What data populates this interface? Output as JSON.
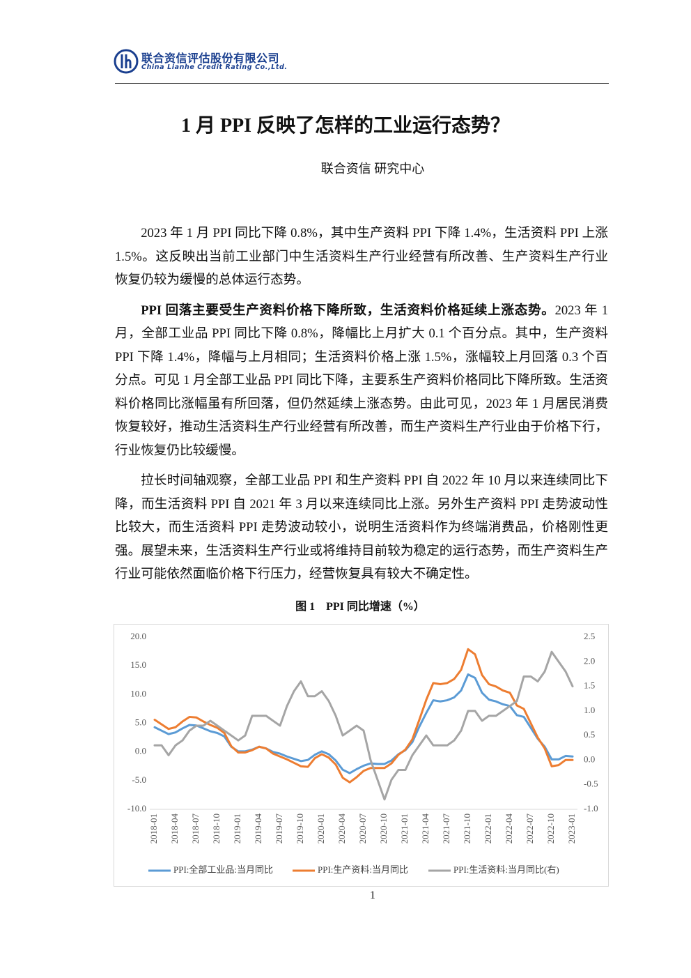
{
  "header": {
    "company": "联合资信评估股份有限公司",
    "company_en": "China Lianhe Credit Rating Co.,Ltd."
  },
  "title": "1 月 PPI 反映了怎样的工业运行态势？",
  "author": "联合资信  研究中心",
  "paragraphs": [
    {
      "text": "2023 年 1 月 PPI 同比下降 0.8%，其中生产资料 PPI 下降 1.4%，生活资料 PPI 上涨 1.5%。这反映出当前工业部门中生活资料生产行业经营有所改善、生产资料生产行业恢复仍较为缓慢的总体运行态势。"
    },
    {
      "lead": "PPI 回落主要受生产资料价格下降所致，生活资料价格延续上涨态势。",
      "text": "2023 年 1 月，全部工业品 PPI 同比下降 0.8%，降幅比上月扩大 0.1 个百分点。其中，生产资料 PPI 下降 1.4%，降幅与上月相同；生活资料价格上涨 1.5%，涨幅较上月回落 0.3 个百分点。可见 1 月全部工业品 PPI 同比下降，主要系生产资料价格同比下降所致。生活资料价格同比涨幅虽有所回落，但仍然延续上涨态势。由此可见，2023 年 1 月居民消费恢复较好，推动生活资料生产行业经营有所改善，而生产资料生产行业由于价格下行，行业恢复仍比较缓慢。"
    },
    {
      "text": "拉长时间轴观察，全部工业品 PPI 和生产资料 PPI 自 2022 年 10 月以来连续同比下降，而生活资料 PPI 自 2021 年 3 月以来连续同比上涨。另外生产资料 PPI 走势波动性比较大，而生活资料 PPI 走势波动较小，说明生活资料作为终端消费品，价格刚性更强。展望未来，生活资料生产行业或将维持目前较为稳定的运行态势，而生产资料生产行业可能依然面临价格下行压力，经营恢复具有较大不确定性。"
    }
  ],
  "figure": {
    "caption": "图 1　PPI 同比增速（%）"
  },
  "page_number": "1",
  "chart_data": {
    "type": "line",
    "categories": [
      "2018-01",
      null,
      null,
      "2018-04",
      null,
      null,
      "2018-07",
      null,
      null,
      "2018-10",
      null,
      null,
      "2019-01",
      null,
      null,
      "2019-04",
      null,
      null,
      "2019-07",
      null,
      null,
      "2019-10",
      null,
      null,
      "2020-01",
      null,
      null,
      "2020-04",
      null,
      null,
      "2020-07",
      null,
      null,
      "2020-10",
      null,
      null,
      "2021-01",
      null,
      null,
      "2021-04",
      null,
      null,
      "2021-07",
      null,
      null,
      "2021-10",
      null,
      null,
      "2022-01",
      null,
      null,
      "2022-04",
      null,
      null,
      "2022-07",
      null,
      null,
      "2022-10",
      null,
      null,
      "2023-01"
    ],
    "series": [
      {
        "name": "PPI:全部工业品:当月同比",
        "color": "#5b9bd5",
        "axis": "y",
        "values": [
          4.3,
          3.7,
          3.1,
          3.4,
          4.1,
          4.7,
          4.6,
          4.1,
          3.6,
          3.3,
          2.7,
          0.9,
          0.1,
          0.1,
          0.4,
          0.9,
          0.6,
          0.0,
          -0.3,
          -0.8,
          -1.2,
          -1.6,
          -1.4,
          -0.5,
          0.1,
          -0.4,
          -1.5,
          -3.1,
          -3.7,
          -3.0,
          -2.4,
          -2.0,
          -2.1,
          -2.1,
          -1.5,
          -0.4,
          0.3,
          1.7,
          4.4,
          6.8,
          9.0,
          8.8,
          9.0,
          9.5,
          10.7,
          13.5,
          12.9,
          10.3,
          9.1,
          8.8,
          8.3,
          8.0,
          6.4,
          6.1,
          4.2,
          2.3,
          0.9,
          -1.3,
          -1.3,
          -0.7,
          -0.8
        ]
      },
      {
        "name": "PPI:生产资料:当月同比",
        "color": "#ed7d31",
        "axis": "y",
        "values": [
          5.6,
          4.8,
          4.0,
          4.3,
          5.3,
          6.1,
          6.0,
          5.3,
          4.7,
          4.2,
          3.3,
          1.0,
          -0.1,
          -0.1,
          0.3,
          0.9,
          0.6,
          -0.3,
          -0.8,
          -1.3,
          -1.9,
          -2.5,
          -2.6,
          -1.1,
          -0.4,
          -1.0,
          -2.2,
          -4.5,
          -5.3,
          -4.4,
          -3.3,
          -2.8,
          -2.8,
          -2.8,
          -2.0,
          -0.5,
          0.4,
          2.2,
          5.6,
          9.1,
          12.0,
          11.8,
          12.0,
          12.7,
          14.3,
          17.9,
          17.0,
          13.4,
          11.8,
          11.4,
          10.7,
          10.3,
          8.1,
          7.5,
          5.0,
          2.5,
          0.6,
          -2.5,
          -2.3,
          -1.4,
          -1.4
        ]
      },
      {
        "name": "PPI:生活资料:当月同比(右)",
        "color": "#a5a5a5",
        "axis": "y2",
        "values": [
          0.3,
          0.3,
          0.1,
          0.3,
          0.4,
          0.6,
          0.7,
          0.7,
          0.8,
          0.7,
          0.6,
          0.5,
          0.4,
          0.5,
          0.9,
          0.9,
          0.9,
          0.8,
          0.7,
          1.1,
          1.4,
          1.6,
          1.3,
          1.3,
          1.4,
          1.2,
          0.9,
          0.5,
          0.6,
          0.7,
          0.6,
          0.0,
          -0.4,
          -0.8,
          -0.4,
          -0.2,
          -0.2,
          0.1,
          0.3,
          0.5,
          0.3,
          0.3,
          0.3,
          0.4,
          0.6,
          1.0,
          1.0,
          0.8,
          0.9,
          0.9,
          1.0,
          1.1,
          1.2,
          1.7,
          1.7,
          1.6,
          1.8,
          2.2,
          2.0,
          1.8,
          1.5
        ]
      }
    ],
    "ylim": [
      -10,
      20
    ],
    "yticks": [
      {
        "value": -10,
        "label": "-10.0"
      },
      {
        "value": -5,
        "label": "-5.0"
      },
      {
        "value": 0,
        "label": "0.0"
      },
      {
        "value": 5,
        "label": "5.0"
      },
      {
        "value": 10,
        "label": "10.0"
      },
      {
        "value": 15,
        "label": "15.0"
      },
      {
        "value": 20,
        "label": "20.0"
      }
    ],
    "y2lim": [
      -1,
      2.5
    ],
    "y2ticks": [
      {
        "value": -1,
        "label": "-1.0"
      },
      -0.5,
      {
        "value": 0,
        "label": "0.0"
      },
      0.5,
      {
        "value": 1,
        "label": "1.0"
      },
      1.5,
      {
        "value": 2,
        "label": "2.0"
      },
      2.5
    ],
    "grid": false,
    "legend": "bottom"
  }
}
